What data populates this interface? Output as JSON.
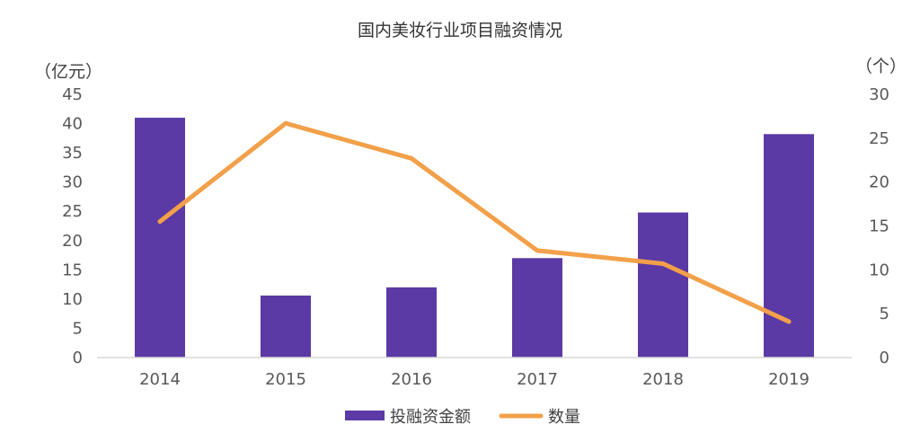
{
  "chart_data": {
    "type": "bar",
    "title": "国内美妆行业项目融资情况",
    "categories": [
      "2014",
      "2015",
      "2016",
      "2017",
      "2018",
      "2019"
    ],
    "series": [
      {
        "name": "投融资金额",
        "type": "bar",
        "axis": "left",
        "color": "#5b3aa5",
        "values": [
          41,
          10.6,
          12,
          17,
          24.8,
          38.2
        ]
      },
      {
        "name": "数量",
        "type": "line",
        "axis": "right",
        "color": "#f2a04a",
        "values": [
          15.5,
          26.7,
          22.7,
          12.2,
          10.7,
          4.1
        ]
      }
    ],
    "y_left": {
      "unit": "（亿元）",
      "lim": [
        0,
        45
      ],
      "ticks": [
        "0",
        "5",
        "10",
        "15",
        "20",
        "25",
        "30",
        "35",
        "40",
        "45"
      ]
    },
    "y_right": {
      "unit": "（个）",
      "lim": [
        0,
        30
      ],
      "ticks": [
        "0",
        "5",
        "10",
        "15",
        "20",
        "25",
        "30"
      ]
    },
    "grid": false,
    "legend_position": "bottom"
  }
}
